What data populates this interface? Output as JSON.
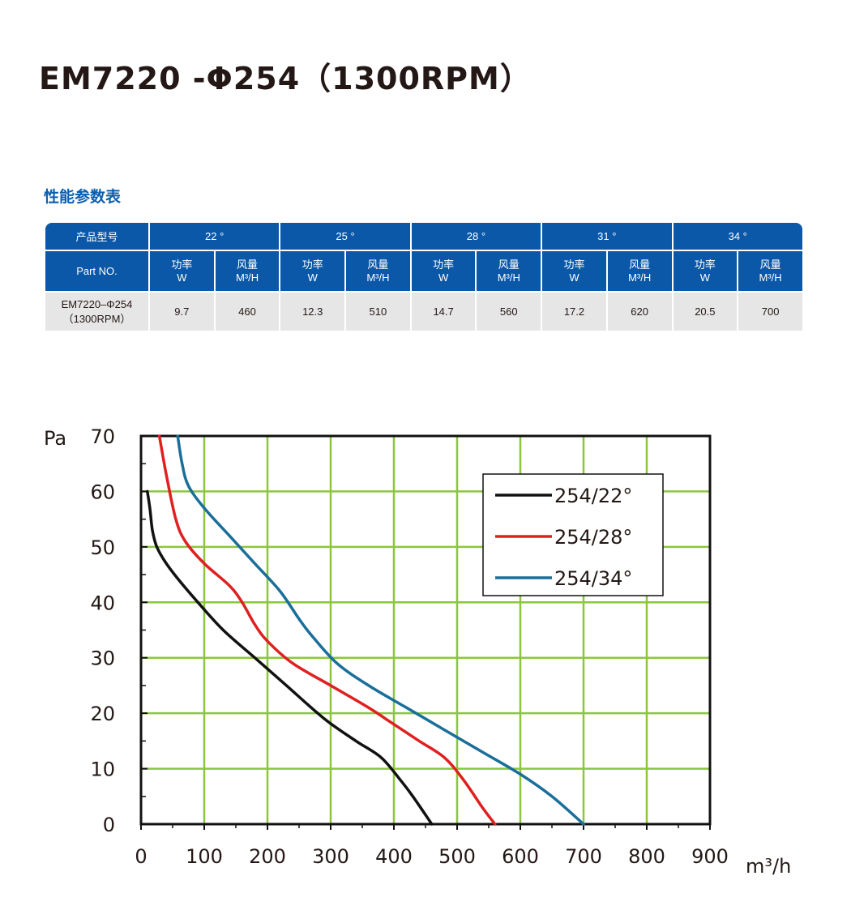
{
  "title": "EM7220 -Φ254（1300RPM）",
  "section_title": "性能参数表",
  "table": {
    "col1_header": "产品型号",
    "part_header": "Part NO.",
    "angles": [
      "22 °",
      "25 °",
      "28 °",
      "31 °",
      "34 °"
    ],
    "sub_headers": [
      {
        "line1": "功率",
        "line2": "W"
      },
      {
        "line1": "风量",
        "line2": "M³/H"
      }
    ],
    "row": {
      "part_line1": "EM7220–Φ254",
      "part_line2": "（1300RPM）",
      "values": [
        "9.7",
        "460",
        "12.3",
        "510",
        "14.7",
        "560",
        "17.2",
        "620",
        "20.5",
        "700"
      ]
    }
  },
  "chart_data": {
    "type": "line",
    "ylabel": "Pa",
    "xlabel": "m³/h",
    "xlim": [
      0,
      900
    ],
    "ylim": [
      0,
      70
    ],
    "x_ticks": [
      "0",
      "100",
      "200",
      "300",
      "400",
      "500",
      "600",
      "700",
      "800",
      "900"
    ],
    "y_ticks": [
      "0",
      "10",
      "20",
      "30",
      "40",
      "50",
      "60",
      "70"
    ],
    "grid": true,
    "legend_position": "top-right",
    "series": [
      {
        "name": "254/22°",
        "color": "#111111",
        "points": [
          [
            10,
            60
          ],
          [
            14,
            57
          ],
          [
            18,
            53
          ],
          [
            25,
            50
          ],
          [
            40,
            47
          ],
          [
            60,
            44
          ],
          [
            90,
            40
          ],
          [
            130,
            35
          ],
          [
            180,
            30
          ],
          [
            230,
            25
          ],
          [
            290,
            19
          ],
          [
            340,
            15
          ],
          [
            380,
            12
          ],
          [
            410,
            8
          ],
          [
            430,
            5
          ],
          [
            460,
            0
          ]
        ]
      },
      {
        "name": "254/28°",
        "color": "#e02020",
        "points": [
          [
            29,
            70
          ],
          [
            40,
            63
          ],
          [
            55,
            55
          ],
          [
            70,
            51
          ],
          [
            100,
            47
          ],
          [
            140,
            43
          ],
          [
            160,
            40
          ],
          [
            180,
            36
          ],
          [
            200,
            33
          ],
          [
            240,
            29
          ],
          [
            300,
            25
          ],
          [
            360,
            21
          ],
          [
            400,
            18
          ],
          [
            440,
            15
          ],
          [
            480,
            12
          ],
          [
            510,
            8
          ],
          [
            540,
            3
          ],
          [
            560,
            0
          ]
        ]
      },
      {
        "name": "254/34°",
        "color": "#1a6f9a",
        "points": [
          [
            58,
            70
          ],
          [
            65,
            65
          ],
          [
            75,
            61
          ],
          [
            100,
            57
          ],
          [
            140,
            52
          ],
          [
            180,
            47
          ],
          [
            220,
            42
          ],
          [
            250,
            37
          ],
          [
            270,
            34
          ],
          [
            310,
            29
          ],
          [
            360,
            25
          ],
          [
            420,
            21
          ],
          [
            480,
            17
          ],
          [
            540,
            13
          ],
          [
            600,
            9
          ],
          [
            650,
            5
          ],
          [
            700,
            0
          ]
        ]
      }
    ]
  }
}
